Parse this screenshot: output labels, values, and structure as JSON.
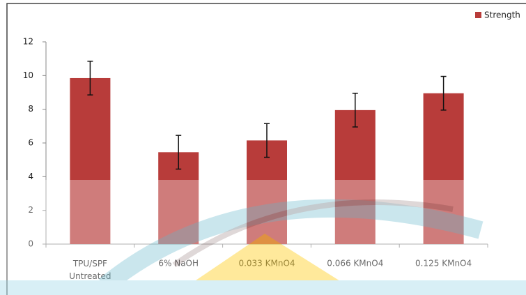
{
  "chart_data": {
    "type": "bar",
    "categories": [
      "TPU/SPF\nUntreated",
      "6% NaOH",
      "0.033 KMnO4",
      "0.066 KMnO4",
      "0.125 KMnO4"
    ],
    "series": [
      {
        "name": "Strength",
        "color": "#b83c3a",
        "values": [
          9.85,
          5.45,
          6.15,
          7.95,
          8.95
        ],
        "errors": [
          1,
          1,
          1,
          1,
          1
        ]
      }
    ],
    "ylim": [
      0,
      12
    ],
    "yticks": [
      0,
      2,
      4,
      6,
      8,
      10,
      12
    ],
    "grid": false,
    "legend": "top-right"
  }
}
